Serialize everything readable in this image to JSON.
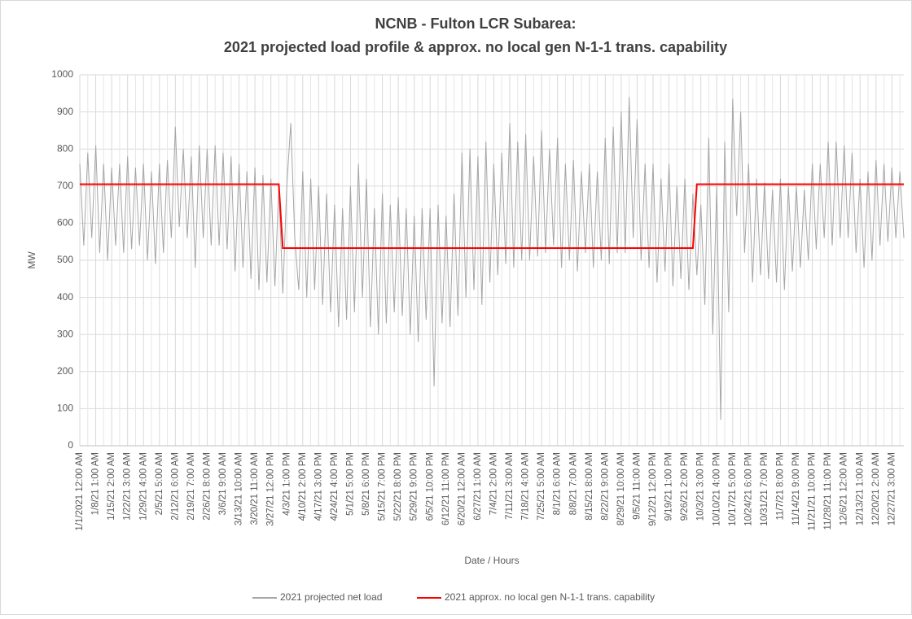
{
  "chart_data": {
    "type": "line",
    "title": "NCNB - Fulton LCR Subarea:",
    "subtitle": "2021 projected load profile & approx. no local gen N-1-1 trans. capability",
    "y_label": "MW",
    "x_label": "Date / Hours",
    "categories": [
      "1/1/2021 12:00 AM",
      null,
      null,
      null,
      "1/8/21 1:00 AM",
      null,
      null,
      null,
      "1/15/21 2:00 AM",
      null,
      null,
      null,
      "1/22/21 3:00 AM",
      null,
      null,
      null,
      "1/29/21 4:00 AM",
      null,
      null,
      null,
      "2/5/21 5:00 AM",
      null,
      null,
      null,
      "2/12/21 6:00 AM",
      null,
      null,
      null,
      "2/19/21 7:00 AM",
      null,
      null,
      null,
      "2/26/21 8:00 AM",
      null,
      null,
      null,
      "3/6/21 9:00 AM",
      null,
      null,
      null,
      "3/13/21 10:00 AM",
      null,
      null,
      null,
      "3/20/21 11:00 AM",
      null,
      null,
      null,
      "3/27/21 12:00 PM",
      null,
      null,
      null,
      "4/3/21 1:00 PM",
      null,
      null,
      null,
      "4/10/21 2:00 PM",
      null,
      null,
      null,
      "4/17/21 3:00 PM",
      null,
      null,
      null,
      "4/24/21 4:00 PM",
      null,
      null,
      null,
      "5/1/21 5:00 PM",
      null,
      null,
      null,
      "5/8/21 6:00 PM",
      null,
      null,
      null,
      "5/15/21 7:00 PM",
      null,
      null,
      null,
      "5/22/21 8:00 PM",
      null,
      null,
      null,
      "5/29/21 9:00 PM",
      null,
      null,
      null,
      "6/5/21 10:00 PM",
      null,
      null,
      null,
      "6/12/21 11:00 PM",
      null,
      null,
      null,
      "6/20/21 12:00 AM",
      null,
      null,
      null,
      "6/27/21 1:00 AM",
      null,
      null,
      null,
      "7/4/21 2:00 AM",
      null,
      null,
      null,
      "7/11/21 3:00 AM",
      null,
      null,
      null,
      "7/18/21 4:00 AM",
      null,
      null,
      null,
      "7/25/21 5:00 AM",
      null,
      null,
      null,
      "8/1/21 6:00 AM",
      null,
      null,
      null,
      "8/8/21 7:00 AM",
      null,
      null,
      null,
      "8/15/21 8:00 AM",
      null,
      null,
      null,
      "8/22/21 9:00 AM",
      null,
      null,
      null,
      "8/29/21 10:00 AM",
      null,
      null,
      null,
      "9/5/21 11:00 AM",
      null,
      null,
      null,
      "9/12/21 12:00 PM",
      null,
      null,
      null,
      "9/19/21 1:00 PM",
      null,
      null,
      null,
      "9/26/21 2:00 PM",
      null,
      null,
      null,
      "10/3/21 3:00 PM",
      null,
      null,
      null,
      "10/10/21 4:00 PM",
      null,
      null,
      null,
      "10/17/21 5:00 PM",
      null,
      null,
      null,
      "10/24/21 6:00 PM",
      null,
      null,
      null,
      "10/31/21 7:00 PM",
      null,
      null,
      null,
      "11/7/21 8:00 PM",
      null,
      null,
      null,
      "11/14/21 9:00 PM",
      null,
      null,
      null,
      "11/21/21 10:00 PM",
      null,
      null,
      null,
      "11/28/21 11:00 PM",
      null,
      null,
      null,
      "12/6/21 12:00 AM",
      null,
      null,
      null,
      "12/13/21 1:00 AM",
      null,
      null,
      null,
      "12/20/21 2:00 AM",
      null,
      null,
      null,
      "12/27/21 3:00 AM",
      null,
      null,
      null
    ],
    "series": [
      {
        "name": "2021 projected net load",
        "color": "#a6a6a6",
        "values": [
          760,
          540,
          790,
          560,
          810,
          520,
          760,
          500,
          750,
          540,
          760,
          520,
          780,
          530,
          750,
          540,
          760,
          500,
          740,
          490,
          760,
          520,
          770,
          560,
          860,
          590,
          800,
          560,
          780,
          480,
          810,
          560,
          800,
          540,
          810,
          540,
          790,
          530,
          780,
          470,
          760,
          480,
          740,
          450,
          750,
          420,
          730,
          440,
          720,
          430,
          700,
          410,
          700,
          870,
          560,
          420,
          740,
          400,
          720,
          420,
          700,
          380,
          680,
          360,
          650,
          320,
          640,
          340,
          700,
          360,
          760,
          400,
          720,
          320,
          640,
          300,
          680,
          330,
          650,
          360,
          670,
          350,
          640,
          300,
          620,
          280,
          640,
          340,
          640,
          160,
          650,
          330,
          620,
          320,
          680,
          350,
          790,
          400,
          800,
          420,
          780,
          380,
          820,
          440,
          760,
          460,
          790,
          490,
          870,
          480,
          820,
          500,
          840,
          500,
          780,
          510,
          850,
          520,
          800,
          540,
          830,
          480,
          760,
          500,
          770,
          470,
          740,
          520,
          760,
          480,
          740,
          500,
          830,
          490,
          860,
          520,
          900,
          520,
          940,
          560,
          880,
          500,
          760,
          480,
          760,
          440,
          720,
          470,
          760,
          430,
          700,
          450,
          720,
          420,
          680,
          460,
          650,
          380,
          830,
          300,
          700,
          70,
          820,
          360,
          935,
          620,
          900,
          520,
          760,
          440,
          720,
          460,
          710,
          450,
          690,
          440,
          720,
          420,
          700,
          470,
          700,
          480,
          690,
          500,
          760,
          530,
          760,
          560,
          820,
          540,
          820,
          560,
          810,
          560,
          790,
          520,
          720,
          480,
          740,
          500,
          770,
          540,
          760,
          550,
          750,
          560,
          740,
          560
        ]
      },
      {
        "name": "2021 approx. no local gen N-1-1 trans. capability",
        "color": "#ff0000",
        "values": [
          705,
          705,
          705,
          705,
          705,
          705,
          705,
          705,
          705,
          705,
          705,
          705,
          705,
          705,
          705,
          705,
          705,
          705,
          705,
          705,
          705,
          705,
          705,
          705,
          705,
          705,
          705,
          705,
          705,
          705,
          705,
          705,
          705,
          705,
          705,
          705,
          705,
          705,
          705,
          705,
          705,
          705,
          705,
          705,
          705,
          705,
          705,
          705,
          705,
          705,
          705,
          533,
          533,
          533,
          533,
          533,
          533,
          533,
          533,
          533,
          533,
          533,
          533,
          533,
          533,
          533,
          533,
          533,
          533,
          533,
          533,
          533,
          533,
          533,
          533,
          533,
          533,
          533,
          533,
          533,
          533,
          533,
          533,
          533,
          533,
          533,
          533,
          533,
          533,
          533,
          533,
          533,
          533,
          533,
          533,
          533,
          533,
          533,
          533,
          533,
          533,
          533,
          533,
          533,
          533,
          533,
          533,
          533,
          533,
          533,
          533,
          533,
          533,
          533,
          533,
          533,
          533,
          533,
          533,
          533,
          533,
          533,
          533,
          533,
          533,
          533,
          533,
          533,
          533,
          533,
          533,
          533,
          533,
          533,
          533,
          533,
          533,
          533,
          533,
          533,
          533,
          533,
          533,
          533,
          533,
          533,
          533,
          533,
          533,
          533,
          533,
          533,
          533,
          533,
          533,
          705,
          705,
          705,
          705,
          705,
          705,
          705,
          705,
          705,
          705,
          705,
          705,
          705,
          705,
          705,
          705,
          705,
          705,
          705,
          705,
          705,
          705,
          705,
          705,
          705,
          705,
          705,
          705,
          705,
          705,
          705,
          705,
          705,
          705,
          705,
          705,
          705,
          705,
          705,
          705,
          705,
          705,
          705,
          705,
          705,
          705,
          705,
          705,
          705,
          705,
          705,
          705,
          705
        ]
      }
    ],
    "ylim": [
      0,
      1000
    ],
    "yticks": [
      0,
      100,
      200,
      300,
      400,
      500,
      600,
      700,
      800,
      900,
      1000
    ],
    "grid": true,
    "legend": "bottom"
  }
}
